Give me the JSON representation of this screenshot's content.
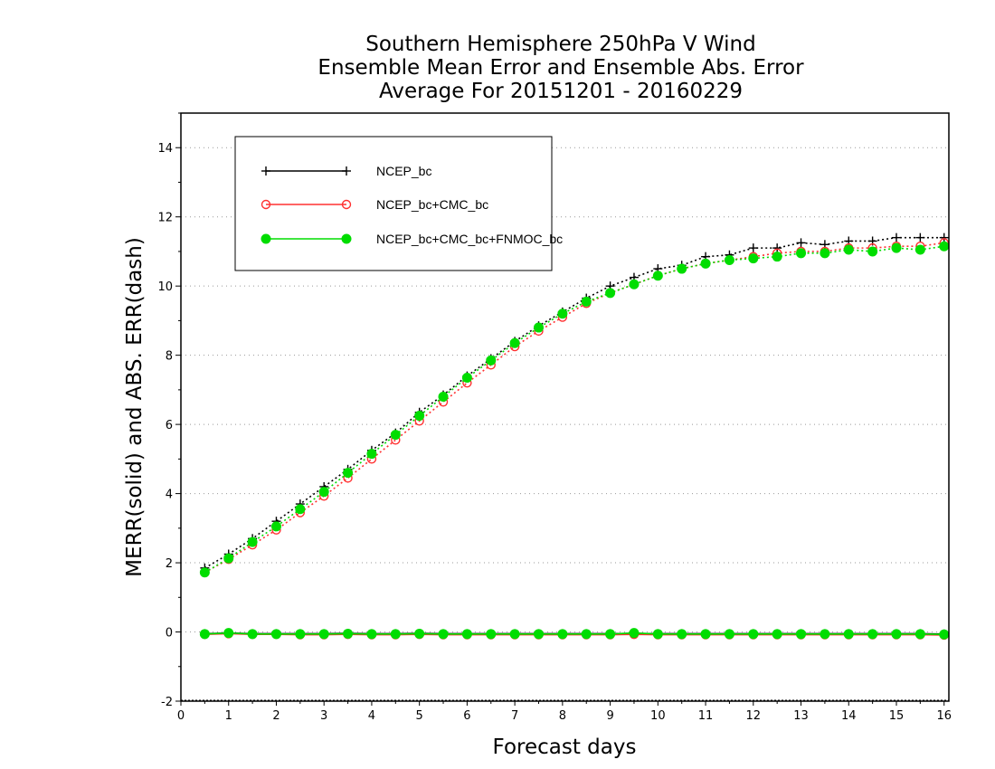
{
  "chart_data": {
    "type": "line",
    "title_lines": [
      "Southern Hemisphere 250hPa V Wind",
      "Ensemble Mean Error and Ensemble Abs. Error",
      "Average For 20151201 - 20160229"
    ],
    "xlabel": "Forecast days",
    "ylabel": "MERR(solid) and ABS. ERR(dash)",
    "xlim": [
      0,
      16.1
    ],
    "ylim": [
      -2,
      15
    ],
    "xticks": [
      "0",
      "1",
      "2",
      "3",
      "4",
      "5",
      "6",
      "7",
      "8",
      "9",
      "10",
      "11",
      "12",
      "13",
      "14",
      "15",
      "16"
    ],
    "yticks": [
      "-2",
      "0",
      "2",
      "4",
      "6",
      "8",
      "10",
      "12",
      "14"
    ],
    "grid": "horizontal dotted",
    "legend_position": "top-left",
    "x": [
      0.5,
      1,
      1.5,
      2,
      2.5,
      3,
      3.5,
      4,
      4.5,
      5,
      5.5,
      6,
      6.5,
      7,
      7.5,
      8,
      8.5,
      9,
      9.5,
      10,
      10.5,
      11,
      11.5,
      12,
      12.5,
      13,
      13.5,
      14,
      14.5,
      15,
      15.5,
      16
    ],
    "series": [
      {
        "name": "NCEP_bc",
        "color": "#000000",
        "marker": "plus",
        "abs_err": [
          1.85,
          2.25,
          2.7,
          3.2,
          3.7,
          4.2,
          4.7,
          5.25,
          5.75,
          6.35,
          6.85,
          7.4,
          7.9,
          8.4,
          8.85,
          9.25,
          9.65,
          10.0,
          10.25,
          10.5,
          10.6,
          10.85,
          10.9,
          11.1,
          11.1,
          11.25,
          11.2,
          11.3,
          11.3,
          11.4,
          11.4,
          11.4
        ],
        "mean_err": [
          -0.05,
          -0.03,
          -0.05,
          -0.05,
          -0.05,
          -0.05,
          -0.04,
          -0.05,
          -0.05,
          -0.04,
          -0.05,
          -0.05,
          -0.05,
          -0.05,
          -0.05,
          -0.05,
          -0.05,
          -0.05,
          -0.04,
          -0.05,
          -0.05,
          -0.05,
          -0.05,
          -0.05,
          -0.05,
          -0.05,
          -0.05,
          -0.05,
          -0.05,
          -0.05,
          -0.05,
          -0.06
        ]
      },
      {
        "name": "NCEP_bc+CMC_bc",
        "color": "#ff3030",
        "marker": "open-circle",
        "abs_err": [
          1.72,
          2.1,
          2.52,
          2.95,
          3.45,
          3.93,
          4.45,
          5.0,
          5.55,
          6.1,
          6.65,
          7.2,
          7.72,
          8.25,
          8.7,
          9.1,
          9.5,
          9.8,
          10.05,
          10.3,
          10.5,
          10.65,
          10.75,
          10.85,
          10.95,
          11.0,
          11.0,
          11.1,
          11.1,
          11.15,
          11.15,
          11.25
        ],
        "mean_err": [
          -0.07,
          -0.05,
          -0.07,
          -0.07,
          -0.08,
          -0.08,
          -0.07,
          -0.08,
          -0.08,
          -0.07,
          -0.08,
          -0.08,
          -0.08,
          -0.08,
          -0.08,
          -0.08,
          -0.08,
          -0.08,
          -0.07,
          -0.08,
          -0.08,
          -0.08,
          -0.08,
          -0.08,
          -0.08,
          -0.08,
          -0.08,
          -0.08,
          -0.08,
          -0.08,
          -0.08,
          -0.09
        ]
      },
      {
        "name": "NCEP_bc+CMC_bc+FNMOC_bc",
        "color": "#00dd00",
        "marker": "filled-circle",
        "abs_err": [
          1.72,
          2.13,
          2.6,
          3.05,
          3.55,
          4.05,
          4.6,
          5.15,
          5.7,
          6.25,
          6.8,
          7.35,
          7.85,
          8.35,
          8.8,
          9.2,
          9.55,
          9.8,
          10.05,
          10.3,
          10.5,
          10.65,
          10.75,
          10.8,
          10.85,
          10.95,
          10.95,
          11.05,
          11.0,
          11.1,
          11.05,
          11.15
        ],
        "mean_err": [
          -0.06,
          -0.03,
          -0.06,
          -0.06,
          -0.06,
          -0.06,
          -0.05,
          -0.06,
          -0.06,
          -0.05,
          -0.06,
          -0.06,
          -0.06,
          -0.06,
          -0.06,
          -0.06,
          -0.06,
          -0.06,
          -0.03,
          -0.06,
          -0.06,
          -0.06,
          -0.06,
          -0.06,
          -0.06,
          -0.06,
          -0.06,
          -0.06,
          -0.06,
          -0.06,
          -0.06,
          -0.07
        ]
      }
    ]
  }
}
